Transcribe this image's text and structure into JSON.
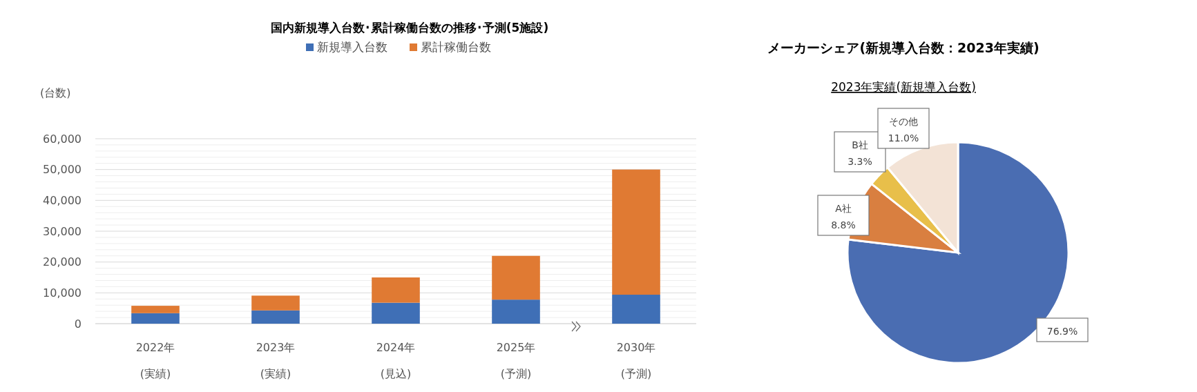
{
  "chart_data": [
    {
      "type": "bar",
      "title": "国内新規導入台数･累計稼働台数の推移･予測(5施設)",
      "ylabel": "(台数)",
      "stacked": true,
      "legend": "top",
      "grid": "y",
      "categories": [
        "2022年\n(実績)",
        "2023年\n(実績)",
        "2024年\n(見込)",
        "2025年\n(予測)",
        "2030年\n(予測)"
      ],
      "series": [
        {
          "name": "新規導入台数",
          "color": "#3f6fb6",
          "values": [
            3400,
            4300,
            6800,
            7800,
            9400
          ]
        },
        {
          "name": "累計稼働台数",
          "color": "#e07a33",
          "values": [
            2400,
            4800,
            8200,
            14200,
            40600
          ]
        }
      ],
      "ylim": [
        0,
        60000
      ],
      "yticks": [
        {
          "value": 0,
          "label": "0"
        },
        {
          "value": 2000,
          "label": null
        },
        {
          "value": 4000,
          "label": null
        },
        {
          "value": 6000,
          "label": null
        },
        {
          "value": 8000,
          "label": null
        },
        {
          "value": 10000,
          "label": "10,000"
        },
        {
          "value": 12000,
          "label": null
        },
        {
          "value": 14000,
          "label": null
        },
        {
          "value": 16000,
          "label": null
        },
        {
          "value": 18000,
          "label": null
        },
        {
          "value": 20000,
          "label": "20,000"
        },
        {
          "value": 22000,
          "label": null
        },
        {
          "value": 24000,
          "label": null
        },
        {
          "value": 26000,
          "label": null
        },
        {
          "value": 28000,
          "label": null
        },
        {
          "value": 30000,
          "label": "30,000"
        },
        {
          "value": 32000,
          "label": null
        },
        {
          "value": 34000,
          "label": null
        },
        {
          "value": 36000,
          "label": null
        },
        {
          "value": 38000,
          "label": null
        },
        {
          "value": 40000,
          "label": "40,000"
        },
        {
          "value": 42000,
          "label": null
        },
        {
          "value": 44000,
          "label": null
        },
        {
          "value": 46000,
          "label": null
        },
        {
          "value": 48000,
          "label": null
        },
        {
          "value": 50000,
          "label": "50,000"
        },
        {
          "value": 52000,
          "label": null
        },
        {
          "value": 54000,
          "label": null
        },
        {
          "value": 56000,
          "label": null
        },
        {
          "value": 58000,
          "label": null
        },
        {
          "value": 60000,
          "label": "60,000"
        }
      ]
    },
    {
      "type": "pie",
      "title": "メーカーシェア(新規導入台数：2023年実績)",
      "subtitle": "2023年実績(新規導入台数)",
      "value_labels": [
        "76.9%",
        "8.8%",
        "3.3%",
        "11.0%"
      ],
      "categories": [
        null,
        "A社",
        "B社",
        "その他"
      ],
      "values": [
        76.9,
        8.8,
        3.3,
        11.0
      ],
      "colors": [
        "#4a6db2",
        "#d97f40",
        "#e8bf4a",
        "#f3e3d6"
      ]
    }
  ]
}
